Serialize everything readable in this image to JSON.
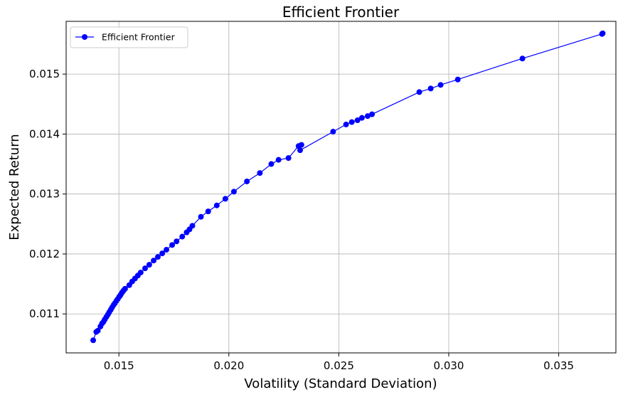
{
  "chart_data": {
    "type": "line",
    "title": "Efficient Frontier",
    "xlabel": "Volatility (Standard Deviation)",
    "ylabel": "Expected Return",
    "xlim": [
      0.0126,
      0.0376
    ],
    "ylim": [
      0.01035,
      0.01588
    ],
    "xticks": [
      0.015,
      0.02,
      0.025,
      0.03,
      0.035
    ],
    "xtick_labels": [
      "0.015",
      "0.020",
      "0.025",
      "0.030",
      "0.035"
    ],
    "yticks": [
      0.011,
      0.012,
      0.013,
      0.014,
      0.015
    ],
    "ytick_labels": [
      "0.011",
      "0.012",
      "0.013",
      "0.014",
      "0.015"
    ],
    "grid": true,
    "legend_position": "upper left",
    "series": [
      {
        "name": "Efficient Frontier",
        "color": "#0000ff",
        "marker": "circle",
        "x": [
          0.01383,
          0.01397,
          0.01404,
          0.01416,
          0.01423,
          0.0143,
          0.01436,
          0.01443,
          0.0145,
          0.01456,
          0.01463,
          0.01469,
          0.01476,
          0.01482,
          0.01489,
          0.01495,
          0.01502,
          0.01508,
          0.01515,
          0.01521,
          0.01528,
          0.01547,
          0.0156,
          0.01573,
          0.01586,
          0.01599,
          0.01619,
          0.01638,
          0.01658,
          0.01677,
          0.01697,
          0.01716,
          0.01742,
          0.01762,
          0.01788,
          0.01808,
          0.01821,
          0.01834,
          0.01873,
          0.01906,
          0.01945,
          0.01984,
          0.02023,
          0.02082,
          0.02141,
          0.02193,
          0.02226,
          0.02271,
          0.02317,
          0.0233,
          0.02324,
          0.02474,
          0.02533,
          0.02559,
          0.02585,
          0.02605,
          0.02631,
          0.02651,
          0.02866,
          0.02918,
          0.02963,
          0.03041,
          0.03335,
          0.03697,
          0.037
        ],
        "y": [
          0.01056,
          0.0107,
          0.01072,
          0.01079,
          0.01084,
          0.01087,
          0.01091,
          0.01095,
          0.01099,
          0.01103,
          0.01107,
          0.01111,
          0.01115,
          0.01118,
          0.01122,
          0.01125,
          0.01129,
          0.01132,
          0.01136,
          0.01139,
          0.01142,
          0.01148,
          0.01154,
          0.01159,
          0.01164,
          0.01169,
          0.01176,
          0.01182,
          0.01189,
          0.01195,
          0.01201,
          0.01207,
          0.01215,
          0.01221,
          0.01229,
          0.01236,
          0.01241,
          0.01247,
          0.01262,
          0.01271,
          0.01281,
          0.01292,
          0.01304,
          0.01321,
          0.01335,
          0.0135,
          0.01357,
          0.0136,
          0.0138,
          0.01382,
          0.01373,
          0.01404,
          0.01416,
          0.0142,
          0.01423,
          0.01427,
          0.0143,
          0.01433,
          0.0147,
          0.01476,
          0.01482,
          0.01491,
          0.01526,
          0.01567,
          0.01568
        ]
      }
    ]
  }
}
